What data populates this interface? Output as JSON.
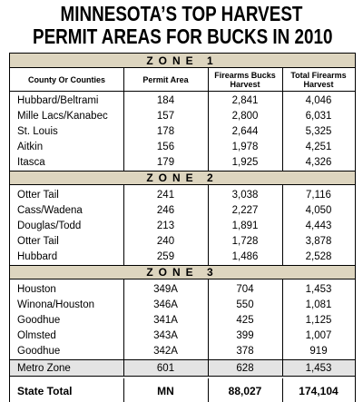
{
  "header": {
    "title": [
      "MINNESOTA’S TOP HARVEST",
      "PERMIT AREAS FOR BUCKS IN 2010"
    ]
  },
  "table": {
    "columns": [
      "County Or Counties",
      "Permit Area",
      "Firearms Bucks Harvest",
      "Total Firearms Harvest"
    ],
    "zones": [
      {
        "name": "ZONE 1",
        "rows": [
          [
            "Hubbard/Beltrami",
            "184",
            "2,841",
            "4,046"
          ],
          [
            "Mille Lacs/Kanabec",
            "157",
            "2,800",
            "6,031"
          ],
          [
            "St. Louis",
            "178",
            "2,644",
            "5,325"
          ],
          [
            "Aitkin",
            "156",
            "1,978",
            "4,251"
          ],
          [
            "Itasca",
            "179",
            "1,925",
            "4,326"
          ]
        ]
      },
      {
        "name": "ZONE 2",
        "rows": [
          [
            "Otter Tail",
            "241",
            "3,038",
            "7,116"
          ],
          [
            "Cass/Wadena",
            "246",
            "2,227",
            "4,050"
          ],
          [
            "Douglas/Todd",
            "213",
            "1,891",
            "4,443"
          ],
          [
            "Otter Tail",
            "240",
            "1,728",
            "3,878"
          ],
          [
            "Hubbard",
            "259",
            "1,486",
            "2,528"
          ]
        ]
      },
      {
        "name": "ZONE 3",
        "rows": [
          [
            "Houston",
            "349A",
            "704",
            "1,453"
          ],
          [
            "Winona/Houston",
            "346A",
            "550",
            "1,081"
          ],
          [
            "Goodhue",
            "341A",
            "425",
            "1,125"
          ],
          [
            "Olmsted",
            "343A",
            "399",
            "1,007"
          ],
          [
            "Goodhue",
            "342A",
            "378",
            "919"
          ]
        ]
      }
    ],
    "metro": [
      "Metro Zone",
      "601",
      "628",
      "1,453"
    ],
    "total": [
      "State Total",
      "MN",
      "88,027",
      "174,104"
    ]
  }
}
